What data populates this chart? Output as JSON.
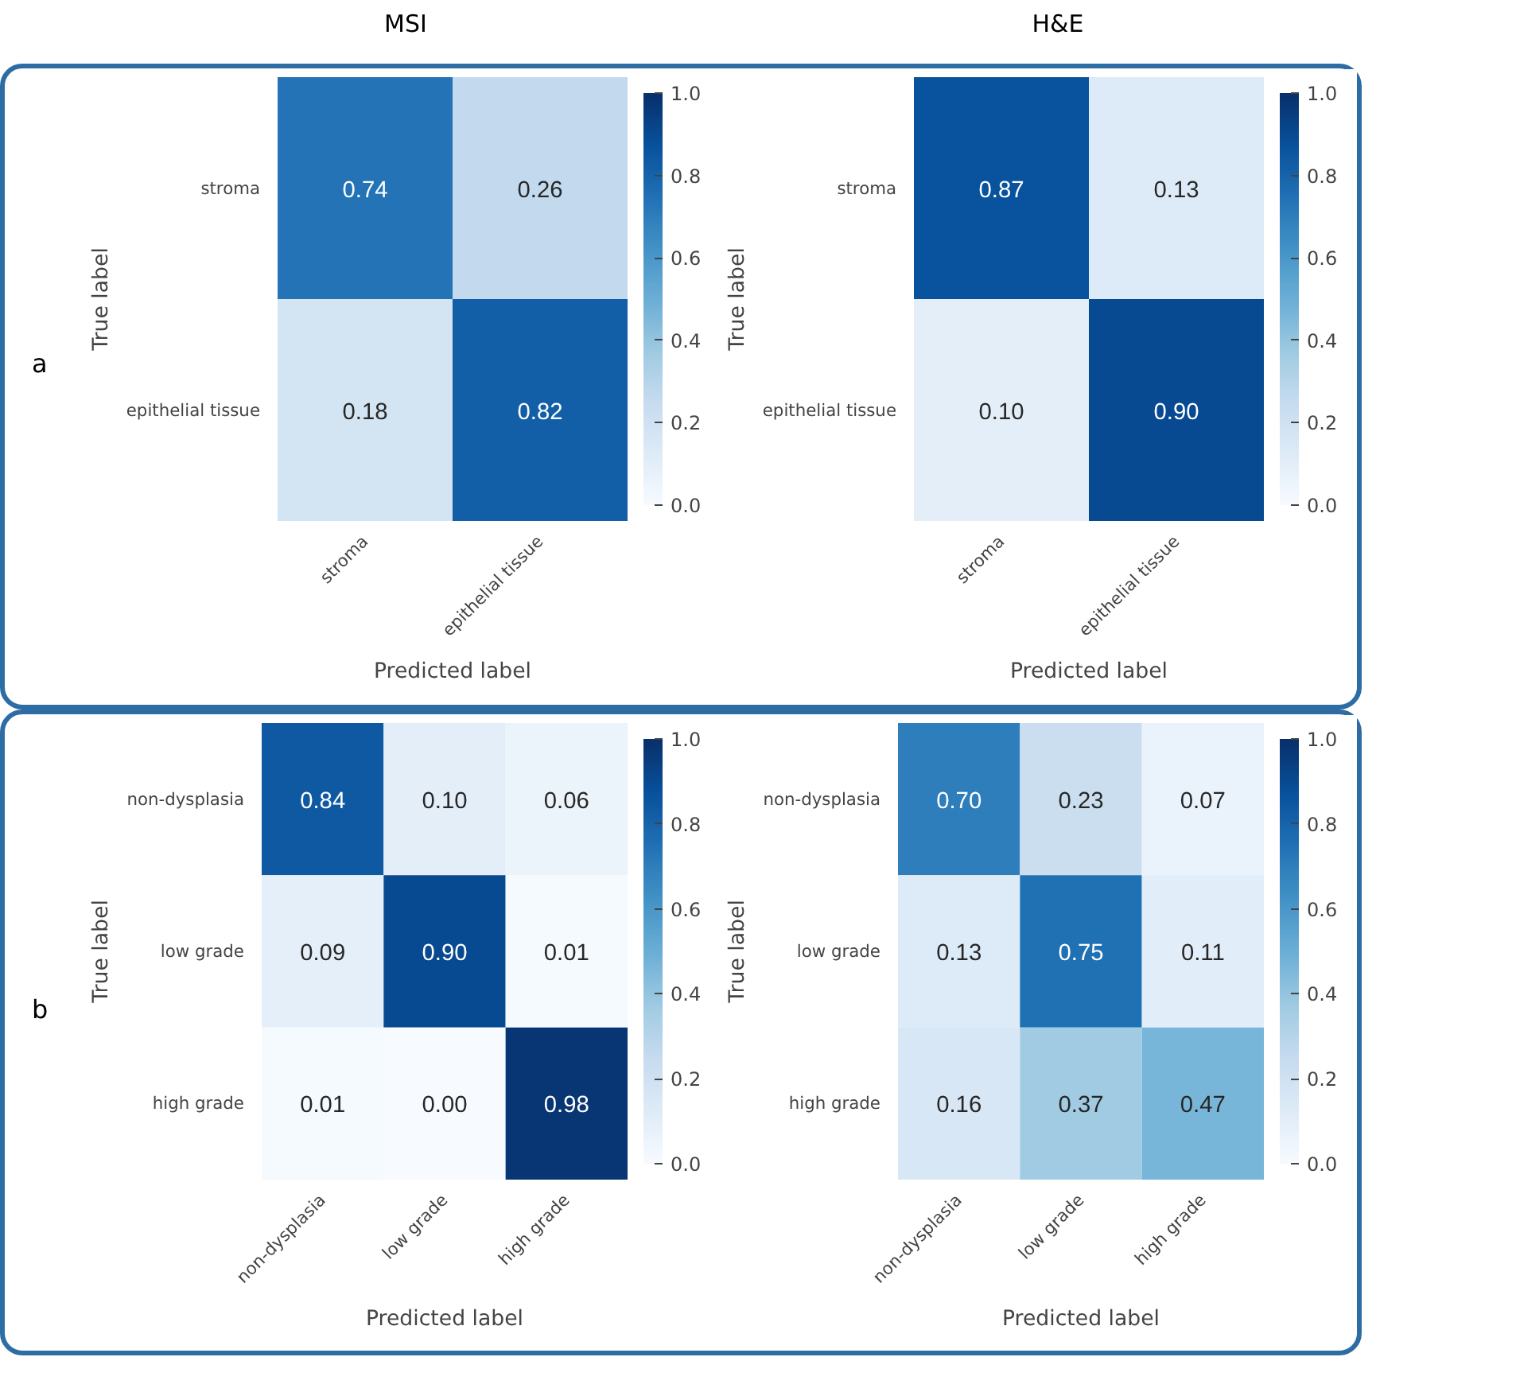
{
  "chart_data": [
    {
      "type": "heatmap",
      "title": "MSI",
      "annotations": [
        "a"
      ],
      "xlabel": "Predicted label",
      "ylabel": "True label",
      "categories": [
        "stroma",
        "epithelial tissue"
      ],
      "y_categories": [
        "stroma",
        "epithelial tissue"
      ],
      "cells": [
        [
          0.74,
          0.26
        ],
        [
          0.18,
          0.82
        ]
      ],
      "cell_labels": [
        [
          "0.74",
          "0.26"
        ],
        [
          "0.18",
          "0.82"
        ]
      ],
      "clim": [
        0,
        1
      ],
      "cticks": [
        {
          "value": 0,
          "label": "0.0"
        },
        {
          "value": 0.2,
          "label": "0.2"
        },
        {
          "value": 0.4,
          "label": "0.4"
        },
        {
          "value": 0.6,
          "label": "0.6"
        },
        {
          "value": 0.8,
          "label": "0.8"
        },
        {
          "value": 1,
          "label": "1.0"
        }
      ],
      "data_labels": true,
      "grid": false
    },
    {
      "type": "heatmap",
      "title": "H&E",
      "xlabel": "Predicted label",
      "ylabel": "True label",
      "categories": [
        "stroma",
        "epithelial tissue"
      ],
      "y_categories": [
        "stroma",
        "epithelial tissue"
      ],
      "cells": [
        [
          0.87,
          0.13
        ],
        [
          0.1,
          0.9
        ]
      ],
      "cell_labels": [
        [
          "0.87",
          "0.13"
        ],
        [
          "0.10",
          "0.90"
        ]
      ],
      "clim": [
        0,
        1
      ],
      "cticks": [
        {
          "value": 0,
          "label": "0.0"
        },
        {
          "value": 0.2,
          "label": "0.2"
        },
        {
          "value": 0.4,
          "label": "0.4"
        },
        {
          "value": 0.6,
          "label": "0.6"
        },
        {
          "value": 0.8,
          "label": "0.8"
        },
        {
          "value": 1,
          "label": "1.0"
        }
      ],
      "data_labels": true,
      "grid": false
    },
    {
      "type": "heatmap",
      "annotations": [
        "b"
      ],
      "xlabel": "Predicted label",
      "ylabel": "True label",
      "categories": [
        "non-dysplasia",
        "low grade",
        "high grade"
      ],
      "y_categories": [
        "non-dysplasia",
        "low grade",
        "high grade"
      ],
      "cells": [
        [
          0.84,
          0.1,
          0.06
        ],
        [
          0.09,
          0.9,
          0.01
        ],
        [
          0.01,
          0.0,
          0.98
        ]
      ],
      "cell_labels": [
        [
          "0.84",
          "0.10",
          "0.06"
        ],
        [
          "0.09",
          "0.90",
          "0.01"
        ],
        [
          "0.01",
          "0.00",
          "0.98"
        ]
      ],
      "clim": [
        0,
        1
      ],
      "cticks": [
        {
          "value": 0,
          "label": "0.0"
        },
        {
          "value": 0.2,
          "label": "0.2"
        },
        {
          "value": 0.4,
          "label": "0.4"
        },
        {
          "value": 0.6,
          "label": "0.6"
        },
        {
          "value": 0.8,
          "label": "0.8"
        },
        {
          "value": 1,
          "label": "1.0"
        }
      ],
      "data_labels": true,
      "grid": false
    },
    {
      "type": "heatmap",
      "xlabel": "Predicted label",
      "ylabel": "True label",
      "categories": [
        "non-dysplasia",
        "low grade",
        "high grade"
      ],
      "y_categories": [
        "non-dysplasia",
        "low grade",
        "high grade"
      ],
      "cells": [
        [
          0.7,
          0.23,
          0.07
        ],
        [
          0.13,
          0.75,
          0.11
        ],
        [
          0.16,
          0.37,
          0.47
        ]
      ],
      "cell_labels": [
        [
          "0.70",
          "0.23",
          "0.07"
        ],
        [
          "0.13",
          "0.75",
          "0.11"
        ],
        [
          "0.16",
          "0.37",
          "0.47"
        ]
      ],
      "clim": [
        0,
        1
      ],
      "cticks": [
        {
          "value": 0,
          "label": "0.0"
        },
        {
          "value": 0.2,
          "label": "0.2"
        },
        {
          "value": 0.4,
          "label": "0.4"
        },
        {
          "value": 0.6,
          "label": "0.6"
        },
        {
          "value": 0.8,
          "label": "0.8"
        },
        {
          "value": 1,
          "label": "1.0"
        }
      ],
      "data_labels": true,
      "grid": false
    }
  ]
}
